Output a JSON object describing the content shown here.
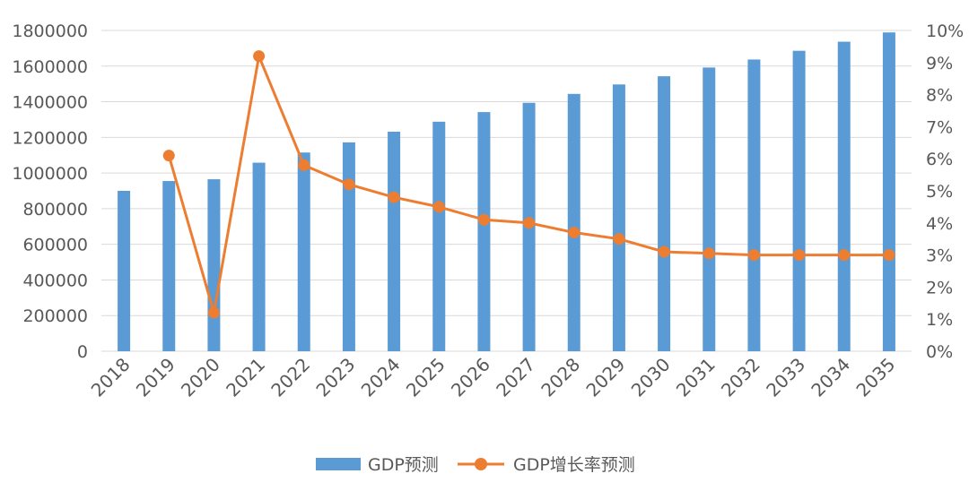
{
  "chart_data": {
    "type": "bar",
    "categories": [
      "2018",
      "2019",
      "2020",
      "2021",
      "2022",
      "2023",
      "2024",
      "2025",
      "2026",
      "2027",
      "2028",
      "2029",
      "2030",
      "2031",
      "2032",
      "2033",
      "2034",
      "2035"
    ],
    "series": [
      {
        "name": "GDP预测",
        "type": "bar",
        "axis": "left",
        "color": "#5b9bd5",
        "values": [
          900000,
          955000,
          965000,
          1058000,
          1115000,
          1172000,
          1232000,
          1288000,
          1342000,
          1394000,
          1444000,
          1497000,
          1543000,
          1592000,
          1637000,
          1686000,
          1737000,
          1789000
        ]
      },
      {
        "name": "GDP增长率预测",
        "type": "line",
        "axis": "right",
        "color": "#ed7d31",
        "values": [
          null,
          6.1,
          1.2,
          9.2,
          5.8,
          5.2,
          4.8,
          4.5,
          4.1,
          4.0,
          3.7,
          3.5,
          3.1,
          3.05,
          3.0,
          3.0,
          3.0,
          3.0
        ]
      }
    ],
    "y_left": {
      "ylim": [
        0,
        1800000
      ],
      "ticks": [
        "0",
        "200000",
        "400000",
        "600000",
        "800000",
        "1000000",
        "1200000",
        "1400000",
        "1600000",
        "1800000"
      ]
    },
    "y_right": {
      "ylim": [
        0,
        10
      ],
      "ticks": [
        "0%",
        "1%",
        "2%",
        "3%",
        "4%",
        "5%",
        "6%",
        "7%",
        "8%",
        "9%",
        "10%"
      ]
    },
    "grid": true,
    "legend_position": "bottom"
  }
}
